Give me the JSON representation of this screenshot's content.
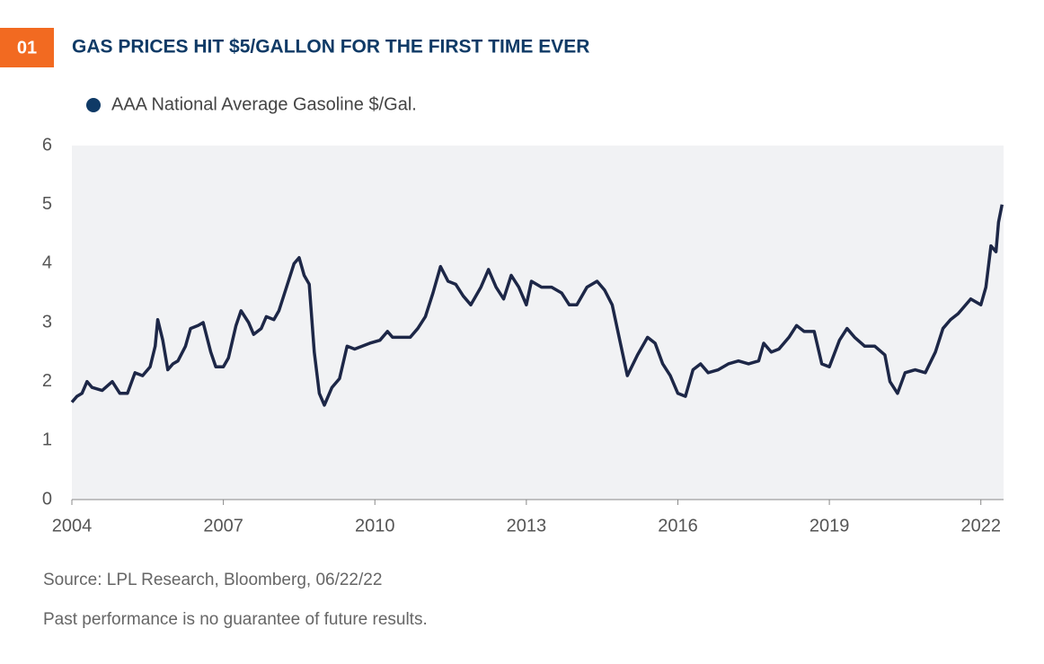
{
  "chart_data": {
    "type": "line",
    "badge": "01",
    "title": "GAS PRICES HIT $5/GALLON FOR THE FIRST TIME EVER",
    "source": "Source: LPL Research, Bloomberg,  06/22/22",
    "note": "Past performance is no guarantee of future results.",
    "x": [
      2004.0,
      2004.1,
      2004.2,
      2004.3,
      2004.4,
      2004.6,
      2004.8,
      2004.95,
      2005.1,
      2005.25,
      2005.4,
      2005.55,
      2005.65,
      2005.7,
      2005.8,
      2005.9,
      2006.0,
      2006.1,
      2006.25,
      2006.35,
      2006.5,
      2006.6,
      2006.75,
      2006.85,
      2007.0,
      2007.1,
      2007.25,
      2007.35,
      2007.5,
      2007.6,
      2007.75,
      2007.85,
      2008.0,
      2008.1,
      2008.25,
      2008.4,
      2008.5,
      2008.6,
      2008.7,
      2008.8,
      2008.9,
      2009.0,
      2009.15,
      2009.3,
      2009.45,
      2009.6,
      2009.75,
      2009.9,
      2010.1,
      2010.25,
      2010.35,
      2010.5,
      2010.7,
      2010.85,
      2011.0,
      2011.15,
      2011.3,
      2011.45,
      2011.6,
      2011.75,
      2011.9,
      2012.1,
      2012.25,
      2012.4,
      2012.55,
      2012.7,
      2012.85,
      2013.0,
      2013.1,
      2013.3,
      2013.5,
      2013.7,
      2013.85,
      2014.0,
      2014.2,
      2014.4,
      2014.55,
      2014.7,
      2014.85,
      2015.0,
      2015.2,
      2015.4,
      2015.55,
      2015.7,
      2015.85,
      2016.0,
      2016.15,
      2016.3,
      2016.45,
      2016.6,
      2016.8,
      2017.0,
      2017.2,
      2017.4,
      2017.6,
      2017.7,
      2017.85,
      2018.0,
      2018.2,
      2018.35,
      2018.5,
      2018.7,
      2018.85,
      2019.0,
      2019.2,
      2019.35,
      2019.5,
      2019.7,
      2019.9,
      2020.1,
      2020.2,
      2020.35,
      2020.5,
      2020.7,
      2020.9,
      2021.1,
      2021.25,
      2021.4,
      2021.55,
      2021.8,
      2022.0,
      2022.1,
      2022.2,
      2022.3,
      2022.35,
      2022.42
    ],
    "series": [
      {
        "name": "AAA National Average Gasoline $/Gal.",
        "color": "#1d2747",
        "marker_color": "#0f3a66",
        "values": [
          1.65,
          1.75,
          1.8,
          2.0,
          1.9,
          1.85,
          2.0,
          1.8,
          1.8,
          2.15,
          2.1,
          2.25,
          2.6,
          3.05,
          2.7,
          2.2,
          2.3,
          2.35,
          2.6,
          2.9,
          2.95,
          3.0,
          2.5,
          2.25,
          2.25,
          2.4,
          2.95,
          3.2,
          3.0,
          2.8,
          2.9,
          3.1,
          3.05,
          3.2,
          3.6,
          4.0,
          4.1,
          3.8,
          3.65,
          2.5,
          1.8,
          1.6,
          1.9,
          2.05,
          2.6,
          2.55,
          2.6,
          2.65,
          2.7,
          2.85,
          2.75,
          2.75,
          2.75,
          2.9,
          3.1,
          3.5,
          3.95,
          3.7,
          3.65,
          3.45,
          3.3,
          3.6,
          3.9,
          3.6,
          3.4,
          3.8,
          3.6,
          3.3,
          3.7,
          3.6,
          3.6,
          3.5,
          3.3,
          3.3,
          3.6,
          3.7,
          3.55,
          3.3,
          2.7,
          2.1,
          2.45,
          2.75,
          2.65,
          2.3,
          2.1,
          1.8,
          1.75,
          2.2,
          2.3,
          2.15,
          2.2,
          2.3,
          2.35,
          2.3,
          2.35,
          2.65,
          2.5,
          2.55,
          2.75,
          2.95,
          2.85,
          2.85,
          2.3,
          2.25,
          2.7,
          2.9,
          2.75,
          2.6,
          2.6,
          2.45,
          2.0,
          1.8,
          2.15,
          2.2,
          2.15,
          2.5,
          2.9,
          3.05,
          3.15,
          3.4,
          3.3,
          3.6,
          4.3,
          4.2,
          4.7,
          5.0
        ]
      }
    ],
    "xlim": [
      2004,
      2022.45
    ],
    "xticks": [
      2004,
      2007,
      2010,
      2013,
      2016,
      2019,
      2022
    ],
    "ylim": [
      0,
      6
    ],
    "yticks": [
      0,
      1,
      2,
      3,
      4,
      5,
      6
    ],
    "plot_background": "#f1f2f4",
    "badge_color": "#f26a21",
    "title_color": "#0f3a66"
  }
}
